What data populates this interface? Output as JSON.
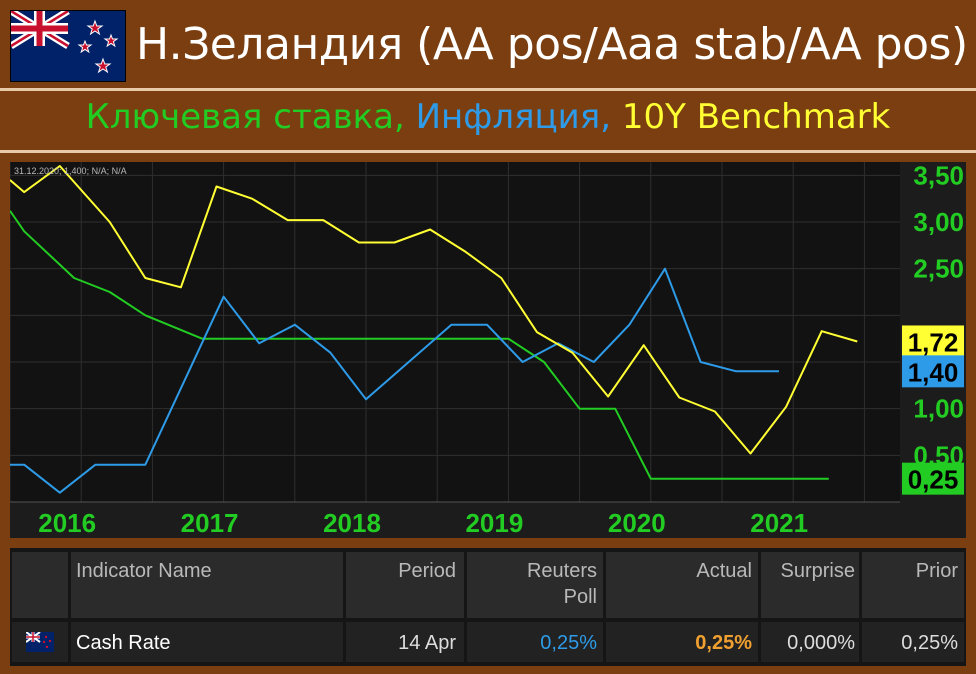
{
  "header": {
    "title": "Н.Зеландия (AA pos/Aaa stab/AA pos)",
    "flag_icon": "new-zealand-flag-icon"
  },
  "subtitle": {
    "part1": "Ключевая ставка, ",
    "part2": "Инфляция, ",
    "part3": "10Y Benchmark",
    "color1": "#22cc22",
    "color2": "#2e9be8",
    "color3": "#ffff33"
  },
  "chart_data": {
    "type": "line",
    "info_text": "31.12.2020; 1,400; N/A; N/A",
    "x_ticks": [
      "2016",
      "2017",
      "2018",
      "2019",
      "2020",
      "2021"
    ],
    "x_tick_values": [
      2016,
      2017,
      2018,
      2019,
      2020,
      2021
    ],
    "xlim": [
      2015.5,
      2021.75
    ],
    "ylim": [
      0.0,
      3.6
    ],
    "y_ticks": [
      "3,50",
      "3,00",
      "2,50",
      "1,00",
      "0,50"
    ],
    "y_tick_values": [
      3.5,
      3.0,
      2.5,
      1.0,
      0.5
    ],
    "last_value_labels": [
      {
        "text": "1,72",
        "value": 1.72,
        "bg": "#ffff33",
        "fg": "#000000"
      },
      {
        "text": "1,40",
        "value": 1.4,
        "bg": "#2e9be8",
        "fg": "#000000"
      },
      {
        "text": "0,25",
        "value": 0.25,
        "bg": "#22cc22",
        "fg": "#000000"
      }
    ],
    "series": [
      {
        "color": "#22cc22",
        "x": [
          2015.5,
          2015.6,
          2015.95,
          2016.2,
          2016.45,
          2016.85,
          2017.3,
          2018.0,
          2018.7,
          2019.0,
          2019.25,
          2019.5,
          2019.75,
          2020.0,
          2020.25,
          2020.5,
          2020.75,
          2021.0,
          2021.25
        ],
        "values": [
          3.12,
          2.9,
          2.4,
          2.25,
          2.0,
          1.75,
          1.75,
          1.75,
          1.75,
          1.75,
          1.5,
          1.0,
          1.0,
          0.25,
          0.25,
          0.25,
          0.25,
          0.25,
          0.25
        ]
      },
      {
        "color": "#2e9be8",
        "x": [
          2015.5,
          2015.6,
          2015.85,
          2016.1,
          2016.45,
          2017.0,
          2017.25,
          2017.5,
          2017.75,
          2018.0,
          2018.3,
          2018.6,
          2018.85,
          2019.1,
          2019.35,
          2019.6,
          2019.85,
          2020.1,
          2020.35,
          2020.6,
          2020.9
        ],
        "values": [
          0.4,
          0.4,
          0.1,
          0.4,
          0.4,
          2.2,
          1.7,
          1.9,
          1.6,
          1.1,
          1.5,
          1.9,
          1.9,
          1.5,
          1.7,
          1.5,
          1.9,
          2.5,
          1.5,
          1.4,
          1.4
        ]
      },
      {
        "color": "#ffff33",
        "x": [
          2015.5,
          2015.6,
          2015.85,
          2016.2,
          2016.45,
          2016.7,
          2016.95,
          2017.2,
          2017.45,
          2017.7,
          2017.95,
          2018.2,
          2018.45,
          2018.7,
          2018.95,
          2019.2,
          2019.45,
          2019.7,
          2019.95,
          2020.2,
          2020.45,
          2020.7,
          2020.95,
          2021.2,
          2021.45
        ],
        "values": [
          3.45,
          3.32,
          3.6,
          3.0,
          2.4,
          2.3,
          3.38,
          3.25,
          3.02,
          3.02,
          2.78,
          2.78,
          2.92,
          2.68,
          2.4,
          1.82,
          1.6,
          1.13,
          1.68,
          1.12,
          0.97,
          0.52,
          1.02,
          1.83,
          1.72
        ]
      }
    ]
  },
  "table": {
    "headers": {
      "name": "Indicator Name",
      "period": "Period",
      "poll_line1": "Reuters",
      "poll_line2": "Poll",
      "actual": "Actual",
      "surprise": "Surprise",
      "prior": "Prior"
    },
    "row": {
      "flag_icon": "new-zealand-flag-small-icon",
      "name": "Cash Rate",
      "period": "14 Apr",
      "poll": "0,25%",
      "actual": "0,25%",
      "surprise": "0,000%",
      "prior": "0,25%",
      "poll_color": "#2e9be8",
      "actual_color": "#f0a030"
    }
  }
}
